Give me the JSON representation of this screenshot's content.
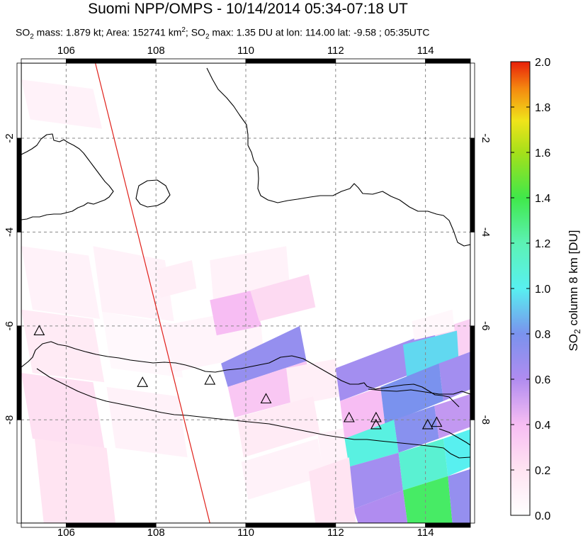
{
  "title": "Suomi NPP/OMPS - 10/14/2014 05:34-07:18 UT",
  "subtitle": {
    "p1": "SO",
    "s1": "2",
    "p2": " mass: 1.879 kt; Area: 152741 km",
    "s2": "2",
    "p3": "; SO",
    "s3": "2",
    "p4": " max: 1.35 DU at lon: 114.00 lat: -9.58 ; 05:35UTC"
  },
  "colorbar": {
    "label_prefix": "SO",
    "label_sub": "2",
    "label_suffix": " column 8 km [DU]",
    "min": 0.0,
    "max": 2.0,
    "ticks": [
      "0.0",
      "0.2",
      "0.4",
      "0.6",
      "0.8",
      "1.0",
      "1.2",
      "1.4",
      "1.6",
      "1.8",
      "2.0"
    ]
  },
  "chart_data": {
    "type": "heatmap",
    "xlim": [
      105,
      115
    ],
    "ylim": [
      -10.2,
      -0.4
    ],
    "x_ticks": [
      "106",
      "108",
      "110",
      "112",
      "114"
    ],
    "y_ticks": [
      "-2",
      "-4",
      "-6",
      "-8"
    ],
    "grid": true,
    "orbit_track": [
      [
        106.65,
        -0.4
      ],
      [
        109.2,
        -10.2
      ]
    ],
    "volcanoes": [
      [
        105.4,
        -6.1
      ],
      [
        107.7,
        -7.2
      ],
      [
        109.2,
        -7.15
      ],
      [
        110.45,
        -7.55
      ],
      [
        112.3,
        -7.95
      ],
      [
        112.9,
        -7.95
      ],
      [
        112.9,
        -8.1
      ],
      [
        114.05,
        -8.1
      ],
      [
        114.25,
        -8.05
      ]
    ],
    "so2_pixels": [
      {
        "corners": [
          [
            105.0,
            -0.75
          ],
          [
            106.6,
            -0.95
          ],
          [
            106.8,
            -1.8
          ],
          [
            105.2,
            -1.6
          ]
        ],
        "value": 0.1
      },
      {
        "corners": [
          [
            105.0,
            -4.3
          ],
          [
            106.5,
            -4.5
          ],
          [
            106.75,
            -5.85
          ],
          [
            105.25,
            -5.65
          ]
        ],
        "value": 0.1
      },
      {
        "corners": [
          [
            105.0,
            -5.65
          ],
          [
            106.6,
            -5.85
          ],
          [
            106.85,
            -7.2
          ],
          [
            105.25,
            -7.0
          ]
        ],
        "value": 0.15
      },
      {
        "corners": [
          [
            105.0,
            -7.0
          ],
          [
            106.6,
            -7.2
          ],
          [
            106.85,
            -8.6
          ],
          [
            105.25,
            -8.4
          ]
        ],
        "value": 0.22
      },
      {
        "corners": [
          [
            105.3,
            -8.4
          ],
          [
            106.9,
            -8.6
          ],
          [
            107.1,
            -10.2
          ],
          [
            105.5,
            -10.2
          ]
        ],
        "value": 0.2
      },
      {
        "corners": [
          [
            106.6,
            -4.3
          ],
          [
            108.2,
            -4.6
          ],
          [
            108.4,
            -5.9
          ],
          [
            106.8,
            -5.7
          ]
        ],
        "value": 0.1
      },
      {
        "corners": [
          [
            106.8,
            -5.7
          ],
          [
            108.4,
            -5.95
          ],
          [
            108.6,
            -7.1
          ],
          [
            107.0,
            -6.9
          ]
        ],
        "value": 0.05
      },
      {
        "corners": [
          [
            106.9,
            -7.3
          ],
          [
            108.5,
            -7.5
          ],
          [
            108.7,
            -8.8
          ],
          [
            107.1,
            -8.6
          ]
        ],
        "value": 0.1
      },
      {
        "corners": [
          [
            108.1,
            -6.0
          ],
          [
            110.3,
            -5.6
          ],
          [
            110.4,
            -6.6
          ],
          [
            108.3,
            -7.0
          ]
        ],
        "value": 0.08
      },
      {
        "corners": [
          [
            109.2,
            -4.6
          ],
          [
            110.9,
            -4.3
          ],
          [
            111.0,
            -5.4
          ],
          [
            109.3,
            -5.7
          ]
        ],
        "value": 0.1
      },
      {
        "corners": [
          [
            108.0,
            -4.8
          ],
          [
            108.8,
            -4.6
          ],
          [
            108.9,
            -5.2
          ],
          [
            108.1,
            -5.4
          ]
        ],
        "value": 0.12
      },
      {
        "corners": [
          [
            109.2,
            -5.45
          ],
          [
            110.1,
            -5.25
          ],
          [
            110.35,
            -6.0
          ],
          [
            109.35,
            -6.2
          ]
        ],
        "value": 0.4
      },
      {
        "corners": [
          [
            110.1,
            -5.25
          ],
          [
            111.4,
            -4.9
          ],
          [
            111.55,
            -5.6
          ],
          [
            110.3,
            -5.9
          ]
        ],
        "value": 0.25
      },
      {
        "corners": [
          [
            109.45,
            -6.8
          ],
          [
            111.2,
            -6.0
          ],
          [
            111.35,
            -6.75
          ],
          [
            109.6,
            -7.3
          ]
        ],
        "value": 0.7
      },
      {
        "corners": [
          [
            109.6,
            -7.3
          ],
          [
            111.35,
            -6.75
          ],
          [
            111.5,
            -7.5
          ],
          [
            109.75,
            -7.95
          ]
        ],
        "value": 0.35
      },
      {
        "corners": [
          [
            110.9,
            -6.9
          ],
          [
            112.0,
            -6.7
          ],
          [
            112.1,
            -7.5
          ],
          [
            111.0,
            -7.7
          ]
        ],
        "value": 0.12
      },
      {
        "corners": [
          [
            109.8,
            -7.95
          ],
          [
            111.5,
            -7.5
          ],
          [
            111.65,
            -8.3
          ],
          [
            109.95,
            -8.8
          ]
        ],
        "value": 0.15
      },
      {
        "corners": [
          [
            111.6,
            -8.3
          ],
          [
            113.0,
            -8.0
          ],
          [
            113.15,
            -9.0
          ],
          [
            111.75,
            -9.3
          ]
        ],
        "value": 0.1
      },
      {
        "corners": [
          [
            109.9,
            -8.9
          ],
          [
            111.6,
            -8.4
          ],
          [
            111.75,
            -9.2
          ],
          [
            110.05,
            -9.7
          ]
        ],
        "value": 0.1
      },
      {
        "corners": [
          [
            112.0,
            -6.9
          ],
          [
            114.2,
            -6.1
          ],
          [
            114.3,
            -6.8
          ],
          [
            112.1,
            -7.6
          ]
        ],
        "value": 0.65
      },
      {
        "corners": [
          [
            114.2,
            -6.1
          ],
          [
            115.0,
            -5.85
          ],
          [
            115.0,
            -6.55
          ],
          [
            114.3,
            -6.8
          ]
        ],
        "value": 0.3
      },
      {
        "corners": [
          [
            113.5,
            -6.4
          ],
          [
            114.7,
            -6.1
          ],
          [
            114.75,
            -6.9
          ],
          [
            113.6,
            -7.2
          ]
        ],
        "value": 0.95
      },
      {
        "corners": [
          [
            112.1,
            -7.6
          ],
          [
            113.0,
            -7.3
          ],
          [
            113.1,
            -8.1
          ],
          [
            112.2,
            -8.4
          ]
        ],
        "value": 0.4
      },
      {
        "corners": [
          [
            113.0,
            -7.3
          ],
          [
            114.3,
            -6.8
          ],
          [
            114.4,
            -7.6
          ],
          [
            113.1,
            -8.1
          ]
        ],
        "value": 0.8
      },
      {
        "corners": [
          [
            114.3,
            -6.8
          ],
          [
            115.0,
            -6.55
          ],
          [
            115.0,
            -7.35
          ],
          [
            114.4,
            -7.6
          ]
        ],
        "value": 0.65
      },
      {
        "corners": [
          [
            112.2,
            -8.4
          ],
          [
            113.3,
            -8.0
          ],
          [
            113.4,
            -8.7
          ],
          [
            112.3,
            -9.0
          ]
        ],
        "value": 1.05
      },
      {
        "corners": [
          [
            113.3,
            -8.0
          ],
          [
            114.2,
            -7.7
          ],
          [
            114.3,
            -8.4
          ],
          [
            113.4,
            -8.7
          ]
        ],
        "value": 0.75
      },
      {
        "corners": [
          [
            114.2,
            -7.7
          ],
          [
            115.0,
            -7.45
          ],
          [
            115.0,
            -8.15
          ],
          [
            114.3,
            -8.4
          ]
        ],
        "value": 0.55
      },
      {
        "corners": [
          [
            114.4,
            -8.4
          ],
          [
            115.0,
            -8.2
          ],
          [
            115.0,
            -9.0
          ],
          [
            114.5,
            -9.2
          ]
        ],
        "value": 1.0
      },
      {
        "corners": [
          [
            112.3,
            -9.0
          ],
          [
            113.4,
            -8.7
          ],
          [
            113.5,
            -9.5
          ],
          [
            112.4,
            -9.9
          ]
        ],
        "value": 0.65
      },
      {
        "corners": [
          [
            113.4,
            -8.7
          ],
          [
            114.4,
            -8.4
          ],
          [
            114.5,
            -9.2
          ],
          [
            113.5,
            -9.5
          ]
        ],
        "value": 1.1
      },
      {
        "corners": [
          [
            113.5,
            -9.5
          ],
          [
            114.5,
            -9.2
          ],
          [
            114.6,
            -10.2
          ],
          [
            113.6,
            -10.2
          ]
        ],
        "value": 1.35
      },
      {
        "corners": [
          [
            114.5,
            -9.2
          ],
          [
            115.0,
            -9.05
          ],
          [
            115.0,
            -10.2
          ],
          [
            114.6,
            -10.2
          ]
        ],
        "value": 0.7
      },
      {
        "corners": [
          [
            112.4,
            -9.9
          ],
          [
            113.5,
            -9.5
          ],
          [
            113.6,
            -10.2
          ],
          [
            112.5,
            -10.2
          ]
        ],
        "value": 0.6
      },
      {
        "corners": [
          [
            111.4,
            -9.1
          ],
          [
            112.3,
            -8.8
          ],
          [
            112.45,
            -10.2
          ],
          [
            111.55,
            -10.2
          ]
        ],
        "value": 0.2
      },
      {
        "corners": [
          [
            113.7,
            -5.9
          ],
          [
            114.6,
            -5.65
          ],
          [
            114.65,
            -6.1
          ],
          [
            113.75,
            -6.3
          ]
        ],
        "value": 0.06
      }
    ]
  }
}
